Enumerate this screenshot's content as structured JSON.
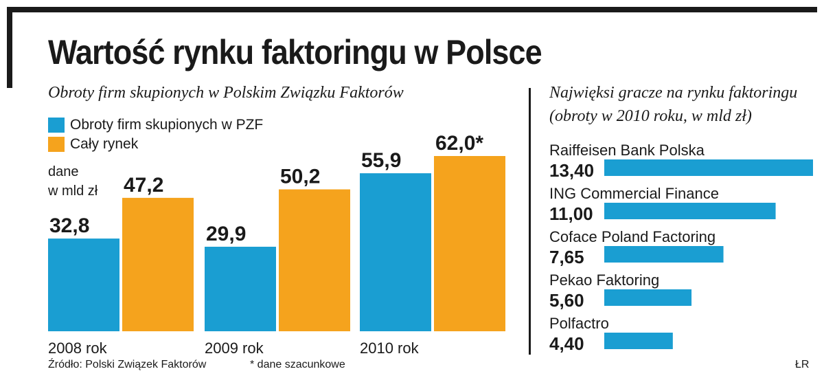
{
  "header": {
    "title": "Wartość rynku faktoringu w Polsce"
  },
  "left_panel": {
    "subtitle": "Obroty firm skupionych w Polskim Związku Faktorów",
    "unit_line1": "dane",
    "unit_line2": "w mld zł"
  },
  "right_panel": {
    "subtitle_line1": "Najwięksi gracze na rynku faktoringu",
    "subtitle_line2": "(obroty w 2010 roku, w mld zł)"
  },
  "footer": {
    "source": "Źródło: Polski Związek Faktorów",
    "footnote": "* dane szacunkowe",
    "credit": "ŁR"
  },
  "colors": {
    "pzf": "#1a9ed2",
    "market": "#f5a31d",
    "text": "#1a1a1a"
  },
  "chart_data": [
    {
      "type": "bar",
      "title": "Obroty firm skupionych w Polskim Związku Faktorów",
      "ylabel": "dane w mld zł",
      "categories": [
        "2008 rok",
        "2009 rok",
        "2010 rok"
      ],
      "series": [
        {
          "name": "Obroty firm skupionych w PZF",
          "color": "#1a9ed2",
          "values": [
            32.8,
            29.9,
            55.9
          ],
          "labels": [
            "32,8",
            "29,9",
            "55,9"
          ]
        },
        {
          "name": "Cały rynek",
          "color": "#f5a31d",
          "values": [
            47.2,
            50.2,
            62.0
          ],
          "labels": [
            "47,2",
            "50,2",
            "62,0*"
          ]
        }
      ],
      "ylim": [
        0,
        62
      ],
      "grid": false,
      "legend": "top-left"
    },
    {
      "type": "bar",
      "orientation": "horizontal",
      "title": "Najwięksi gracze na rynku faktoringu (obroty w 2010 roku, w mld zł)",
      "categories": [
        "Raiffeisen Bank Polska",
        "ING Commercial Finance",
        "Coface Poland Factoring",
        "Pekao Faktoring",
        "Polfactro"
      ],
      "values": [
        13.4,
        11.0,
        7.65,
        5.6,
        4.4
      ],
      "labels": [
        "13,40",
        "11,00",
        "7,65",
        "5,60",
        "4,40"
      ],
      "color": "#1a9ed2",
      "xlim": [
        0,
        13.4
      ],
      "grid": false
    }
  ]
}
